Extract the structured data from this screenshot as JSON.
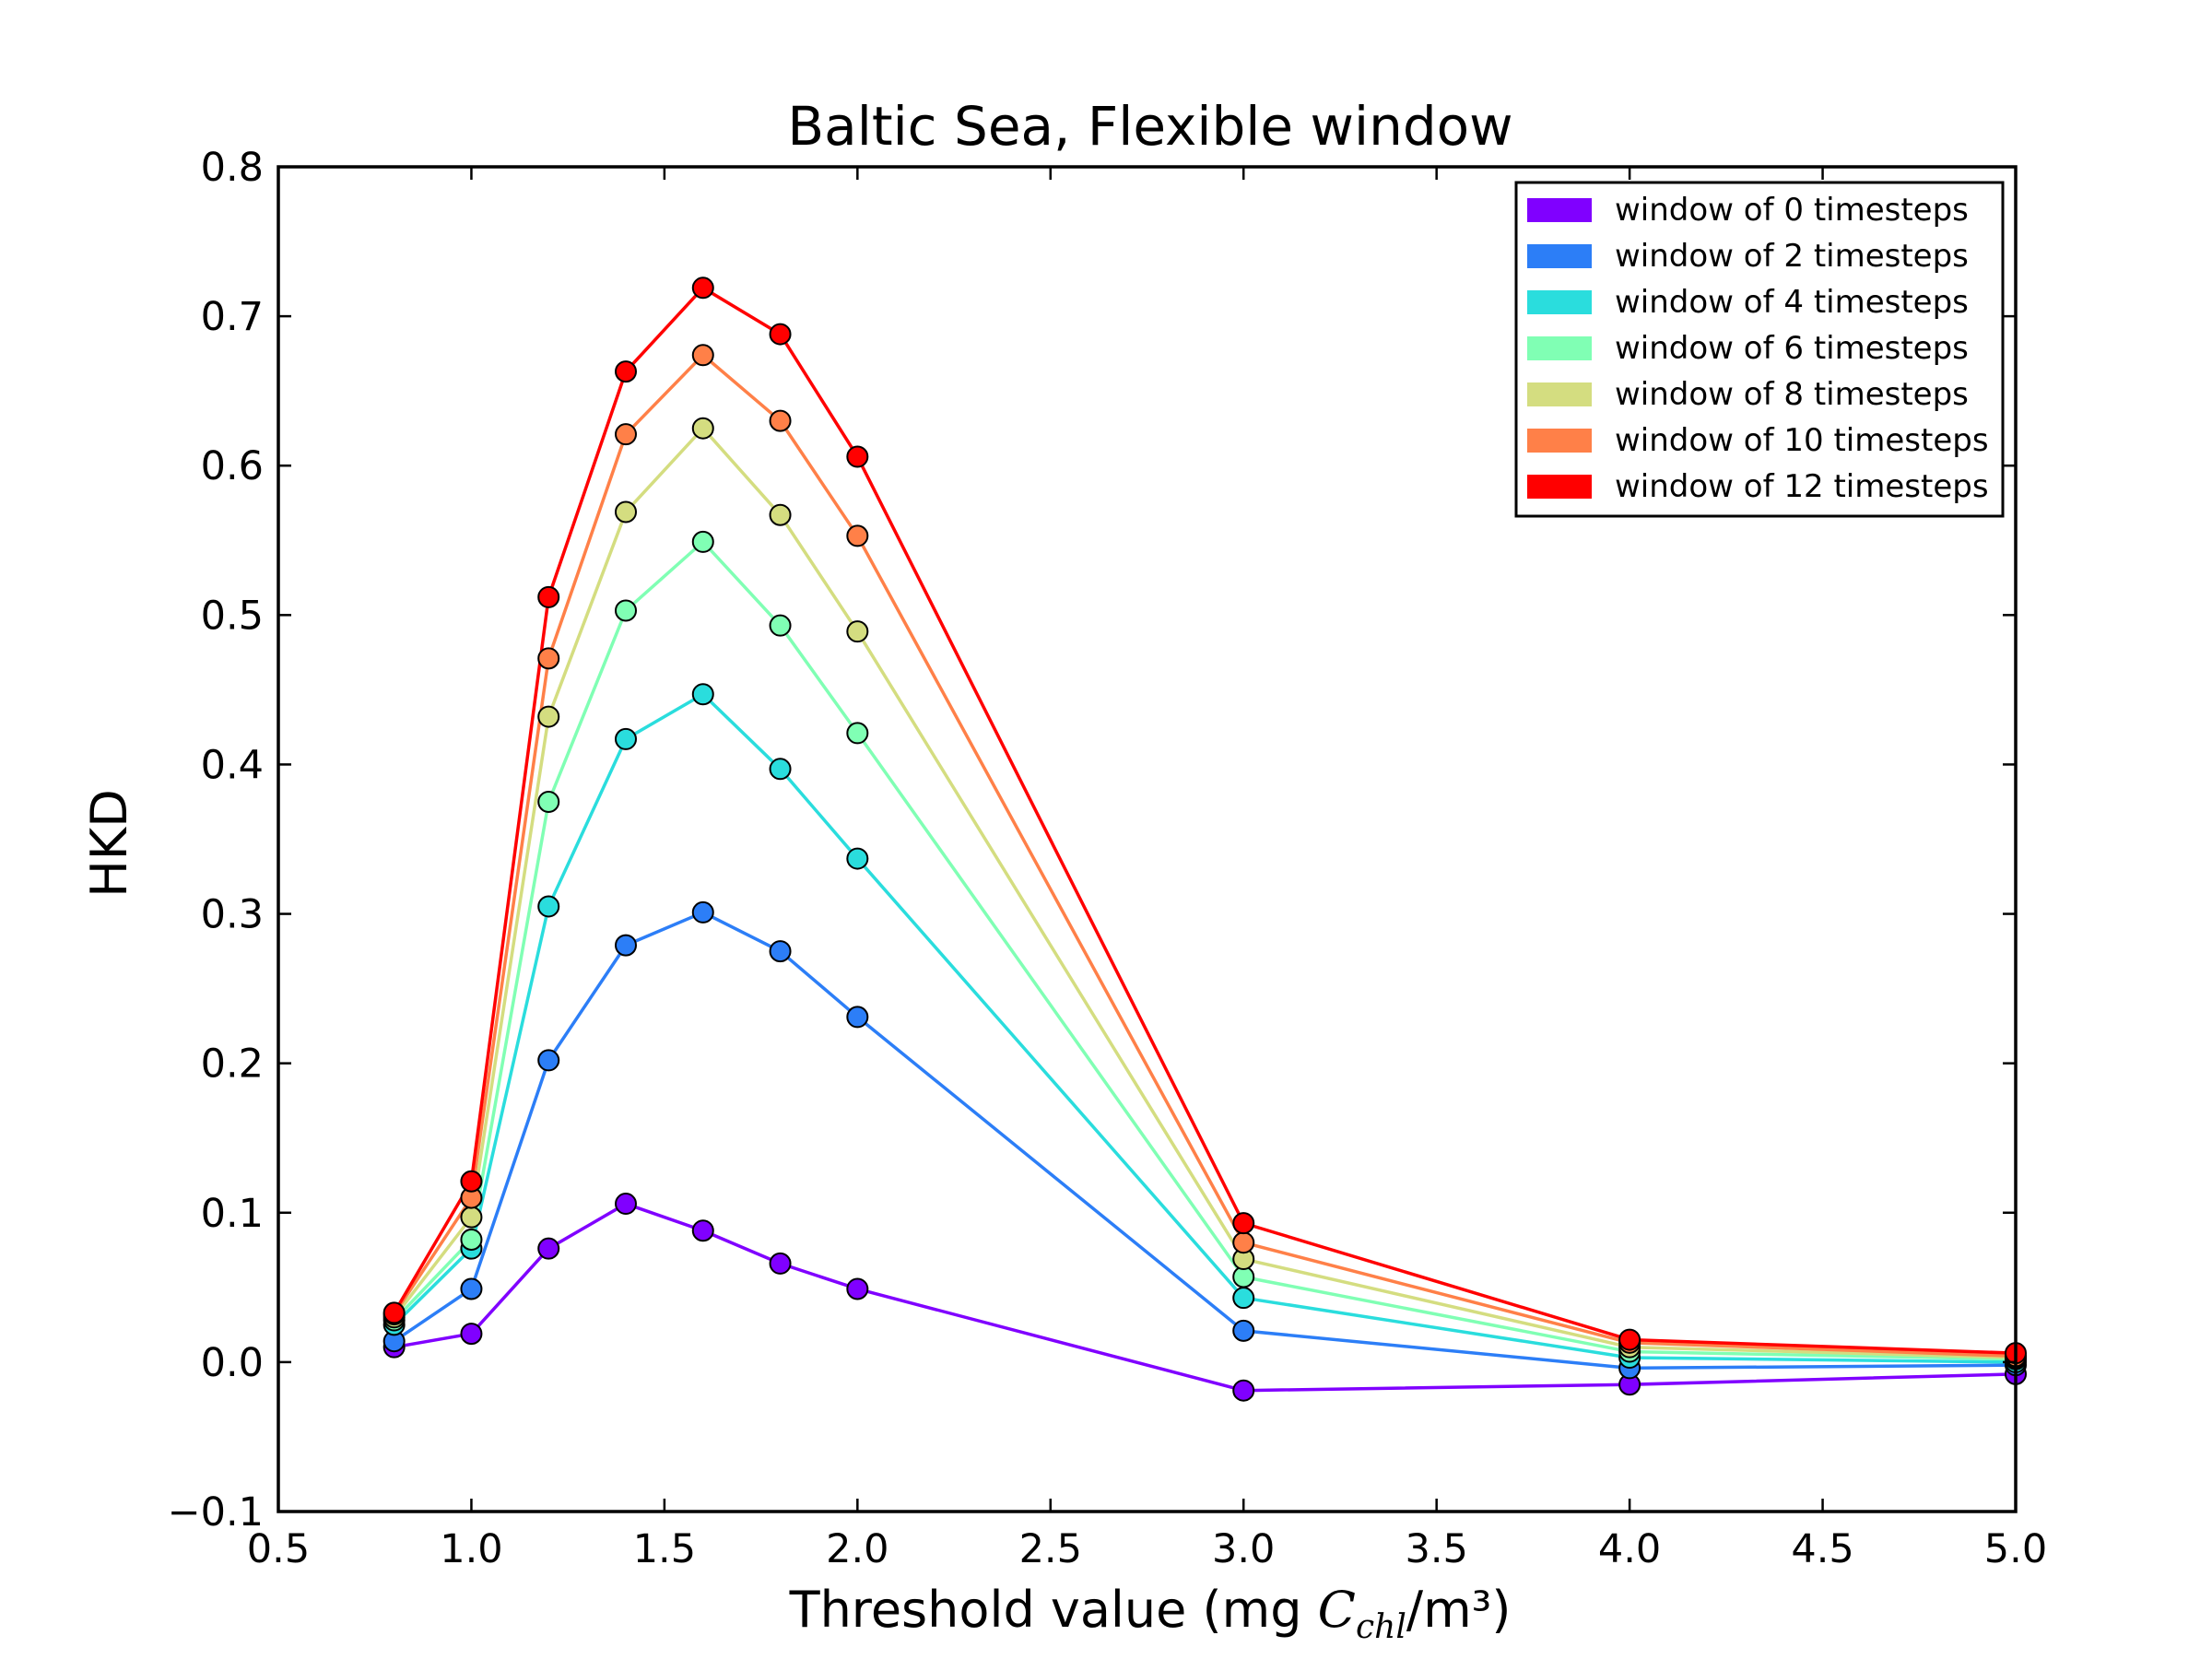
{
  "chart_data": {
    "type": "line",
    "title": "Baltic Sea, Flexible window",
    "xlabel_parts": {
      "prefix": "Threshold value (mg ",
      "symbol": "C",
      "subscript": "chl",
      "suffix": "/m³)"
    },
    "ylabel": "HKD",
    "xlim": [
      0.5,
      5.0
    ],
    "ylim": [
      -0.1,
      0.8
    ],
    "xticks": [
      "0.5",
      "1.0",
      "1.5",
      "2.0",
      "2.5",
      "3.0",
      "3.5",
      "4.0",
      "4.5",
      "5.0"
    ],
    "yticks": [
      "−0.1",
      "0.0",
      "0.1",
      "0.2",
      "0.3",
      "0.4",
      "0.5",
      "0.6",
      "0.7",
      "0.8"
    ],
    "grid": false,
    "legend_position": "upper right",
    "x": [
      0.8,
      1.0,
      1.2,
      1.4,
      1.6,
      1.8,
      2.0,
      3.0,
      4.0,
      5.0
    ],
    "series": [
      {
        "name": "window of 0 timesteps",
        "color": "#8000ff",
        "values": [
          0.01,
          0.019,
          0.076,
          0.106,
          0.088,
          0.066,
          0.049,
          -0.019,
          -0.015,
          -0.008
        ]
      },
      {
        "name": "window of 2 timesteps",
        "color": "#2c7ef7",
        "values": [
          0.014,
          0.049,
          0.202,
          0.279,
          0.301,
          0.275,
          0.231,
          0.021,
          -0.004,
          -0.002
        ]
      },
      {
        "name": "window of 4 timesteps",
        "color": "#2adddd",
        "values": [
          0.025,
          0.076,
          0.305,
          0.417,
          0.447,
          0.397,
          0.337,
          0.043,
          0.003,
          0.0
        ]
      },
      {
        "name": "window of 6 timesteps",
        "color": "#80ffb4",
        "values": [
          0.028,
          0.082,
          0.375,
          0.503,
          0.549,
          0.493,
          0.421,
          0.057,
          0.007,
          0.002
        ]
      },
      {
        "name": "window of 8 timesteps",
        "color": "#d4dd80",
        "values": [
          0.03,
          0.097,
          0.432,
          0.569,
          0.625,
          0.567,
          0.489,
          0.069,
          0.01,
          0.003
        ]
      },
      {
        "name": "window of 10 timesteps",
        "color": "#ff8048",
        "values": [
          0.032,
          0.11,
          0.471,
          0.621,
          0.674,
          0.63,
          0.553,
          0.08,
          0.013,
          0.004
        ]
      },
      {
        "name": "window of 12 timesteps",
        "color": "#ff0000",
        "values": [
          0.033,
          0.121,
          0.512,
          0.663,
          0.719,
          0.688,
          0.606,
          0.093,
          0.015,
          0.006
        ]
      }
    ]
  }
}
